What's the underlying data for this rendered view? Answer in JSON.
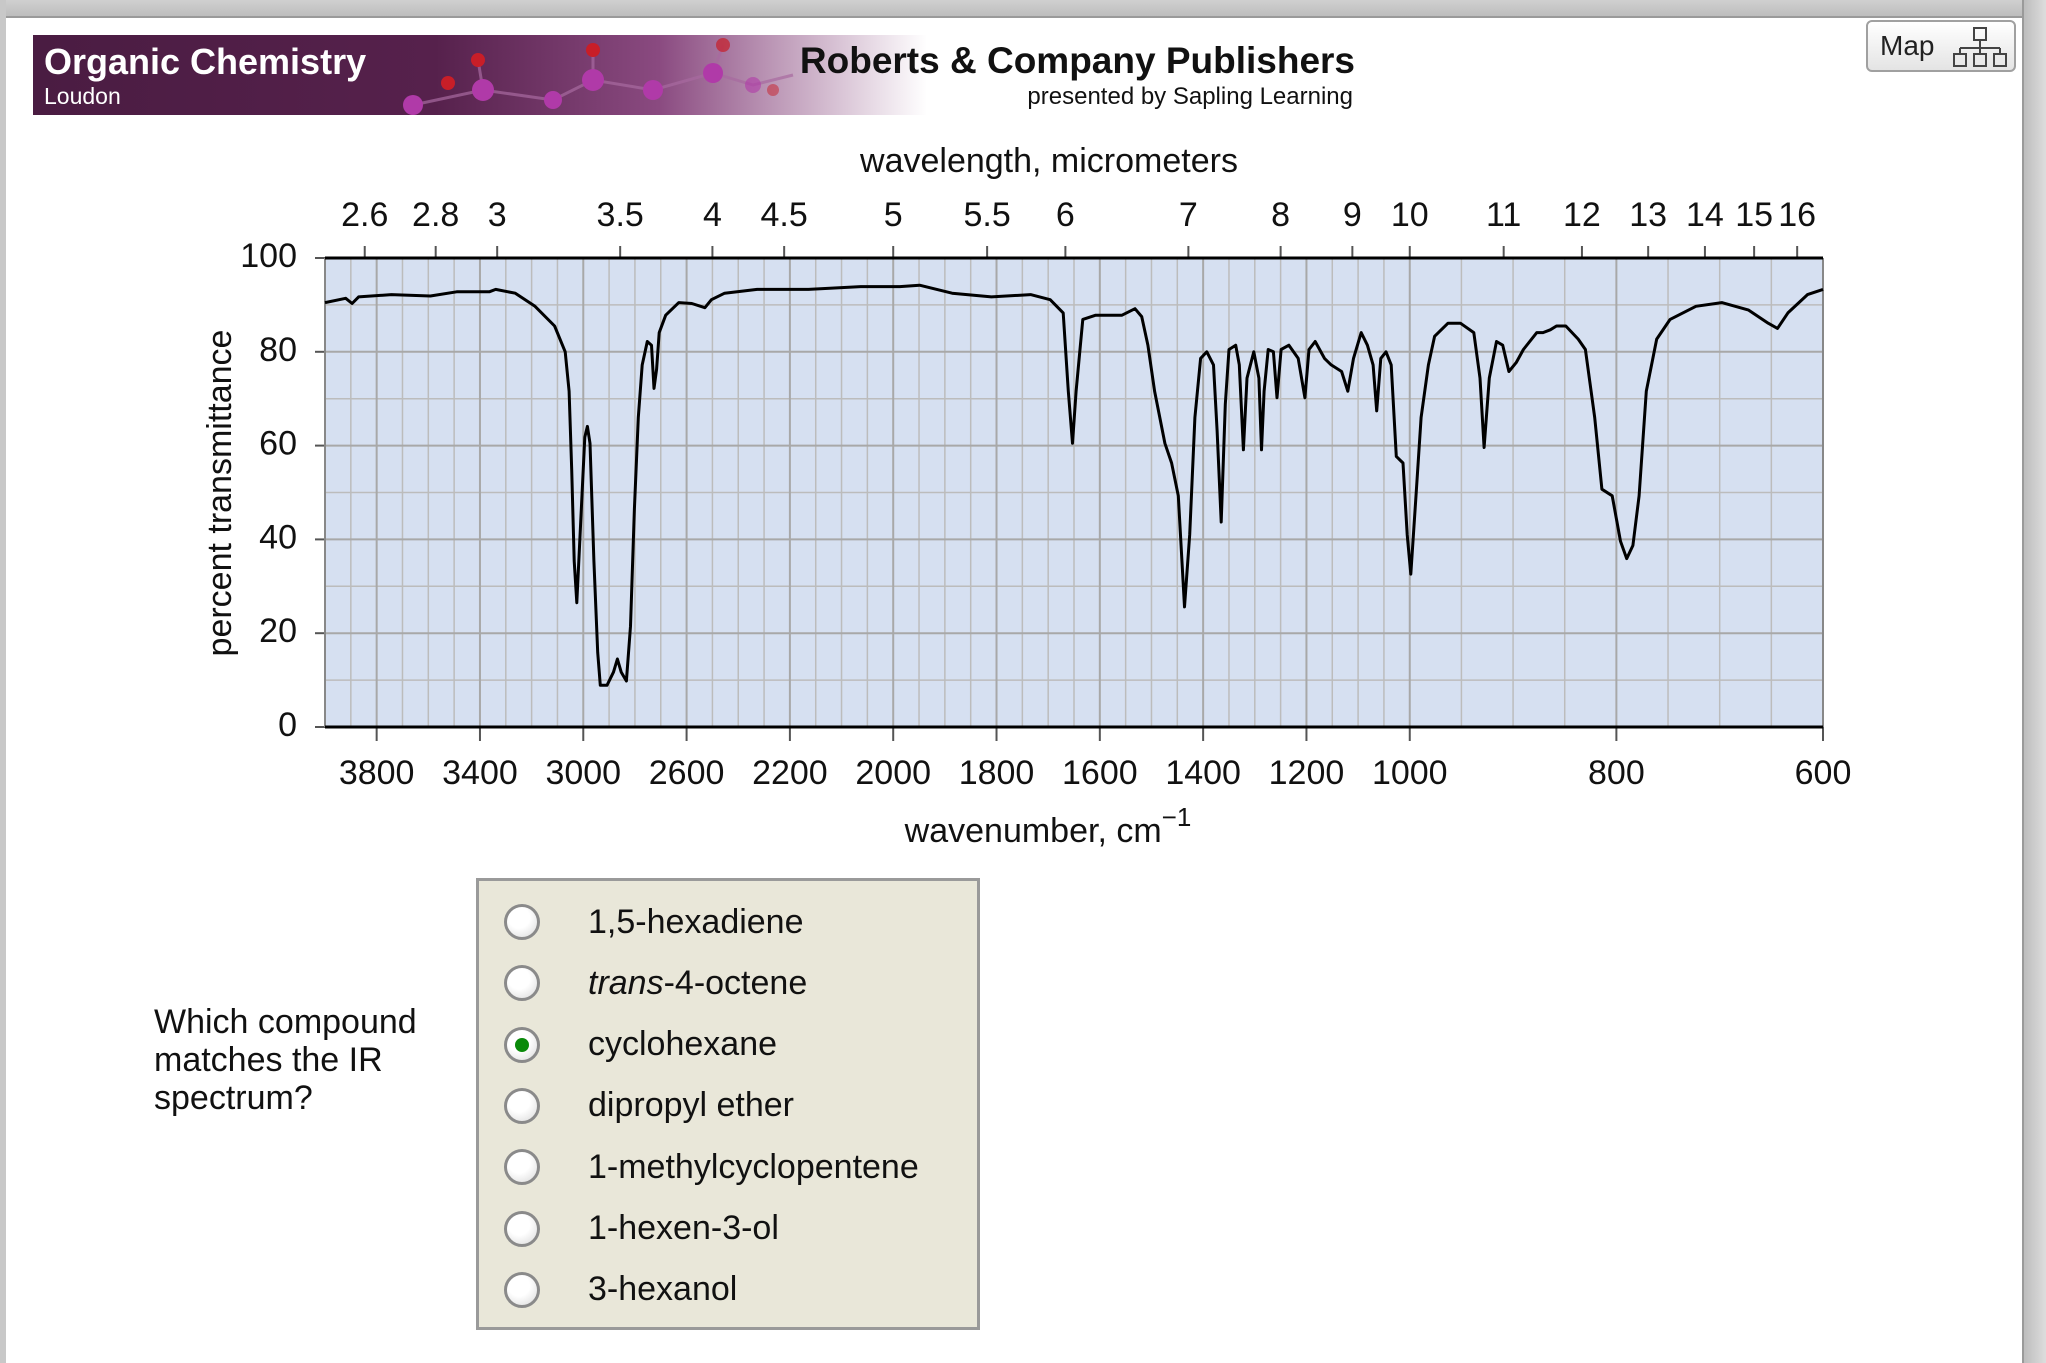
{
  "header": {
    "course": "Organic Chemistry",
    "author": "Loudon",
    "publisher": "Roberts & Company Publishers",
    "presenter": "presented by Sapling Learning",
    "map_button": "Map"
  },
  "question": {
    "text": "Which compound matches the IR spectrum?",
    "options": [
      {
        "label": "1,5-hexadiene"
      },
      {
        "label_italic": "trans",
        "label": "-4-octene"
      },
      {
        "label": "cyclohexane"
      },
      {
        "label": "dipropyl ether"
      },
      {
        "label": "1-methylcyclopentene"
      },
      {
        "label": "1-hexen-3-ol"
      },
      {
        "label": "3-hexanol"
      }
    ],
    "selected": 2
  },
  "chart_data": {
    "type": "line",
    "x_label_top": "wavelength, micrometers",
    "x_label": "wavenumber, cm",
    "x_label_superscript": "−1",
    "y_label": "percent transmittance",
    "xlim": [
      4000,
      600
    ],
    "xticks": [
      3800,
      3400,
      3000,
      2600,
      2200,
      2000,
      1800,
      1600,
      1400,
      1200,
      1000,
      800,
      600
    ],
    "x2ticks": [
      2.6,
      2.8,
      3,
      3.5,
      4,
      4.5,
      5,
      5.5,
      6,
      7,
      8,
      9,
      10,
      11,
      12,
      13,
      14,
      15,
      16
    ],
    "ylim": [
      0,
      100
    ],
    "yticks": [
      0,
      20,
      40,
      60,
      80,
      100
    ],
    "grid": true,
    "color": "#000000",
    "x": [
      4000,
      3920,
      3895,
      3870,
      3743,
      3592,
      3490,
      3364,
      3339,
      3263,
      3187,
      3111,
      3070,
      3055,
      3045,
      3035,
      3025,
      3010,
      2994,
      2984,
      2974,
      2959,
      2944,
      2934,
      2908,
      2883,
      2868,
      2853,
      2833,
      2817,
      2802,
      2787,
      2772,
      2752,
      2736,
      2726,
      2716,
      2706,
      2681,
      2630,
      2580,
      2529,
      2504,
      2453,
      2327,
      2164,
      2063,
      1987,
      1949,
      1886,
      1810,
      1734,
      1696,
      1671,
      1661,
      1653,
      1646,
      1633,
      1608,
      1557,
      1532,
      1519,
      1507,
      1494,
      1474,
      1461,
      1448,
      1436,
      1426,
      1416,
      1405,
      1393,
      1380,
      1373,
      1365,
      1357,
      1350,
      1337,
      1330,
      1322,
      1315,
      1302,
      1292,
      1287,
      1282,
      1274,
      1264,
      1257,
      1249,
      1234,
      1216,
      1203,
      1195,
      1183,
      1165,
      1152,
      1132,
      1120,
      1109,
      1094,
      1082,
      1071,
      1064,
      1056,
      1046,
      1036,
      1026,
      1013,
      1005,
      999,
      994,
      989,
      982,
      976,
      963,
      951,
      938,
      932,
      928,
      923,
      916,
      910,
      904,
      897,
      890,
      877,
      871,
      864,
      858,
      849,
      837,
      830,
      821,
      814,
      804,
      796,
      790,
      784,
      778,
      771,
      761,
      748,
      723,
      698,
      672,
      653,
      644,
      634,
      615,
      600
    ],
    "values": [
      90.5,
      91.4,
      90.3,
      91.7,
      92.2,
      91.9,
      92.8,
      92.8,
      93.3,
      92.5,
      89.7,
      85.5,
      80,
      71.6,
      54.9,
      35.4,
      26.5,
      43.7,
      61.8,
      64.1,
      60.5,
      35.4,
      15.9,
      8.9,
      8.9,
      11.7,
      14.5,
      11.7,
      9.8,
      21.5,
      46.5,
      66,
      77.2,
      82.2,
      81.4,
      72.2,
      76.3,
      84.1,
      87.8,
      90.5,
      90.3,
      89.4,
      91.1,
      92.5,
      93.3,
      93.3,
      93.9,
      93.9,
      94.2,
      92.5,
      91.7,
      92.2,
      91.1,
      88.3,
      71.6,
      60.5,
      71.6,
      86.9,
      87.8,
      87.8,
      89.2,
      87.5,
      81.4,
      71.6,
      60.5,
      56.3,
      49.3,
      25.6,
      41,
      66,
      78.6,
      80,
      77.2,
      63.2,
      43.7,
      68.8,
      80.5,
      81.4,
      77.2,
      59.1,
      74.4,
      80,
      74.4,
      59.1,
      71.6,
      80.5,
      80,
      70.2,
      80.5,
      81.4,
      78.6,
      70.2,
      80.5,
      82.2,
      78.6,
      77.2,
      75.8,
      71.6,
      78.6,
      84.1,
      81.4,
      77.2,
      67.4,
      78.6,
      80,
      77.2,
      57.7,
      56.3,
      41,
      32.6,
      49.3,
      66,
      77.2,
      83.3,
      86.1,
      86.1,
      84.1,
      74.4,
      59.6,
      74.4,
      82.2,
      81.4,
      75.8,
      77.7,
      80.5,
      84.1,
      84.1,
      84.7,
      85.5,
      85.5,
      82.7,
      80.5,
      66,
      50.7,
      49.3,
      39.6,
      35.9,
      38.7,
      49.3,
      71.6,
      82.7,
      86.9,
      89.7,
      90.5,
      88.9,
      86.1,
      85,
      88.3,
      92.2,
      93.3
    ]
  }
}
